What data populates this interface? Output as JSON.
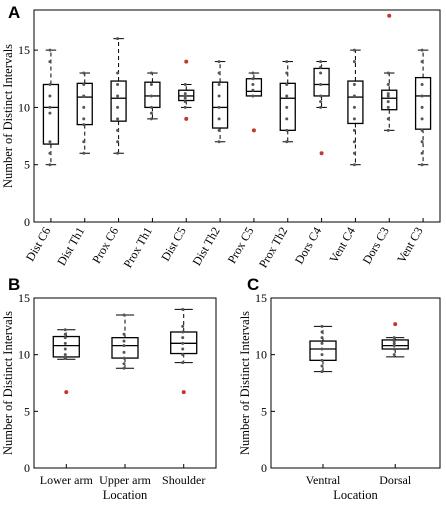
{
  "chart_data": [
    {
      "panel": "A",
      "type": "box",
      "ylabel": "Number of Distinct Intervals",
      "xlabel": "",
      "ylim": [
        0,
        18.5
      ],
      "yticks": [
        0,
        5,
        10,
        15
      ],
      "grid": false,
      "legend": "none",
      "categories": [
        "Dist C6",
        "Dist Th1",
        "Prox C6",
        "Prox Th1",
        "Dist C5",
        "Dist Th2",
        "Prox C5",
        "Prox Th2",
        "Dors C4",
        "Vent C4",
        "Dors C3",
        "Vent C3"
      ],
      "boxes": [
        {
          "whisker_low": 5,
          "q1": 6.8,
          "median": 10,
          "q3": 12,
          "whisker_high": 15,
          "points": [
            15,
            14,
            12,
            11,
            10,
            9.5,
            7,
            6,
            5
          ],
          "outliers": []
        },
        {
          "whisker_low": 6,
          "q1": 8.5,
          "median": 10.9,
          "q3": 12.1,
          "whisker_high": 13,
          "points": [
            13,
            12,
            11,
            10,
            9,
            8.5,
            7,
            6
          ],
          "outliers": []
        },
        {
          "whisker_low": 6,
          "q1": 8.8,
          "median": 10.8,
          "q3": 12.3,
          "whisker_high": 16,
          "points": [
            16,
            13,
            12,
            11,
            10,
            9,
            8,
            7,
            6
          ],
          "outliers": []
        },
        {
          "whisker_low": 9,
          "q1": 10,
          "median": 11,
          "q3": 12.2,
          "whisker_high": 13,
          "points": [
            13,
            12,
            11,
            10,
            9.5,
            9
          ],
          "outliers": []
        },
        {
          "whisker_low": 10,
          "q1": 10.6,
          "median": 11,
          "q3": 11.5,
          "whisker_high": 12,
          "points": [
            12,
            11.2,
            11,
            10.8,
            10.5,
            10
          ],
          "outliers": [
            14,
            9
          ]
        },
        {
          "whisker_low": 7,
          "q1": 8.2,
          "median": 10,
          "q3": 12.2,
          "whisker_high": 14,
          "points": [
            14,
            13,
            12,
            11,
            10,
            9,
            8,
            7
          ],
          "outliers": []
        },
        {
          "whisker_low": 11,
          "q1": 11,
          "median": 11.4,
          "q3": 12.5,
          "whisker_high": 13,
          "points": [
            13,
            12.5,
            12,
            11.5,
            11
          ],
          "outliers": [
            8
          ]
        },
        {
          "whisker_low": 7,
          "q1": 8,
          "median": 10.8,
          "q3": 12.1,
          "whisker_high": 14,
          "points": [
            14,
            13,
            12,
            11,
            10,
            9,
            8,
            7
          ],
          "outliers": []
        },
        {
          "whisker_low": 10,
          "q1": 11,
          "median": 12,
          "q3": 13.4,
          "whisker_high": 14,
          "points": [
            14,
            13.5,
            13,
            12,
            11,
            10.5,
            10
          ],
          "outliers": [
            6
          ]
        },
        {
          "whisker_low": 5,
          "q1": 8.6,
          "median": 10.9,
          "q3": 12.3,
          "whisker_high": 15,
          "points": [
            15,
            14,
            12,
            11,
            10,
            9,
            8,
            7,
            6,
            5
          ],
          "outliers": []
        },
        {
          "whisker_low": 8,
          "q1": 9.8,
          "median": 10.8,
          "q3": 11.5,
          "whisker_high": 13,
          "points": [
            13,
            12,
            11.2,
            11,
            10.5,
            10,
            9,
            8
          ],
          "outliers": [
            18
          ]
        },
        {
          "whisker_low": 5,
          "q1": 8.1,
          "median": 11,
          "q3": 12.6,
          "whisker_high": 15,
          "points": [
            15,
            14,
            12,
            11,
            10,
            9,
            8,
            7,
            6,
            5
          ],
          "outliers": []
        }
      ]
    },
    {
      "panel": "B",
      "type": "box",
      "ylabel": "Number of Distinct Intervals",
      "xlabel": "Location",
      "ylim": [
        0,
        15
      ],
      "yticks": [
        0,
        5,
        10,
        15
      ],
      "grid": false,
      "legend": "none",
      "categories": [
        "Lower arm",
        "Upper arm",
        "Shoulder"
      ],
      "boxes": [
        {
          "whisker_low": 9.6,
          "q1": 9.8,
          "median": 10.8,
          "q3": 11.6,
          "whisker_high": 12.2,
          "points": [
            12.2,
            11.8,
            11.5,
            11,
            10.5,
            10,
            9.7
          ],
          "outliers": [
            6.7
          ]
        },
        {
          "whisker_low": 8.8,
          "q1": 9.7,
          "median": 10.8,
          "q3": 11.5,
          "whisker_high": 13.5,
          "points": [
            13.5,
            11.8,
            11.2,
            10.8,
            10.2,
            9.7,
            9.2,
            8.8
          ],
          "outliers": []
        },
        {
          "whisker_low": 9.3,
          "q1": 10.1,
          "median": 11,
          "q3": 12,
          "whisker_high": 14,
          "points": [
            14,
            12.5,
            12,
            11.5,
            11,
            10.5,
            10,
            9.3
          ],
          "outliers": [
            6.7
          ]
        }
      ]
    },
    {
      "panel": "C",
      "type": "box",
      "ylabel": "Number of Distinct Intervals",
      "xlabel": "Location",
      "ylim": [
        0,
        15
      ],
      "yticks": [
        0,
        5,
        10,
        15
      ],
      "grid": false,
      "legend": "none",
      "categories": [
        "Ventral",
        "Dorsal"
      ],
      "boxes": [
        {
          "whisker_low": 8.5,
          "q1": 9.5,
          "median": 10.5,
          "q3": 11.2,
          "whisker_high": 12.5,
          "points": [
            12.5,
            12,
            11.5,
            11,
            10.5,
            10,
            9.5,
            9,
            8.5
          ],
          "outliers": []
        },
        {
          "whisker_low": 9.8,
          "q1": 10.5,
          "median": 10.8,
          "q3": 11.3,
          "whisker_high": 11.5,
          "points": [
            11.5,
            11.2,
            11,
            10.8,
            10.5,
            10
          ],
          "outliers": [
            12.7
          ]
        }
      ]
    }
  ]
}
